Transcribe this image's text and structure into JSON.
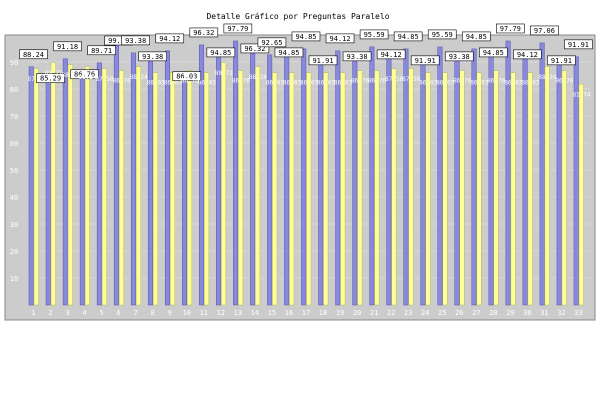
{
  "chart_data": {
    "type": "bar",
    "title": "Detalle Gráfico por Preguntas Paralelo",
    "xlabel": "",
    "ylabel": "",
    "ylim": [
      0,
      100
    ],
    "yticks": [
      10,
      20,
      30,
      40,
      50,
      60,
      70,
      80,
      90
    ],
    "grid": true,
    "legend": "none",
    "categories": [
      "1",
      "2",
      "3",
      "4",
      "5",
      "6",
      "7",
      "8",
      "9",
      "10",
      "11",
      "12",
      "13",
      "14",
      "15",
      "16",
      "17",
      "18",
      "19",
      "20",
      "21",
      "22",
      "23",
      "24",
      "25",
      "26",
      "27",
      "28",
      "29",
      "30",
      "31",
      "32",
      "33"
    ],
    "series": [
      {
        "values": [
          88.24,
          85.29,
          91.18,
          86.76,
          89.71,
          99.26,
          93.38,
          93.38,
          94.12,
          86.03,
          96.32,
          94.85,
          97.79,
          96.32,
          92.65,
          94.85,
          94.85,
          91.91,
          94.12,
          93.38,
          95.59,
          94.12,
          94.85,
          91.91,
          95.59,
          93.38,
          94.85,
          94.85,
          97.79,
          94.12,
          97.06,
          91.91,
          91.91
        ]
      },
      {
        "values": [
          87.5,
          89.71,
          88.97,
          88.24,
          87.5,
          86.76,
          88.24,
          86.03,
          86.03,
          86.76,
          86.03,
          89.71,
          86.76,
          88.24,
          86.03,
          86.03,
          86.03,
          86.03,
          86.03,
          86.76,
          86.76,
          87.5,
          87.5,
          86.03,
          86.03,
          86.76,
          86.03,
          86.76,
          86.03,
          86.03,
          88.24,
          86.76,
          81.74
        ]
      }
    ]
  },
  "colors": {
    "frame_fill": "#cccccc",
    "frame_stroke": "#888888",
    "bar_blue": "#8888dd",
    "bar_blue_dark": "#5555aa",
    "bar_yellow": "#ffff99",
    "bar_yellow_dark": "#bbbb55",
    "tick_text": "#ffffff",
    "label_box": "#ffffff"
  }
}
